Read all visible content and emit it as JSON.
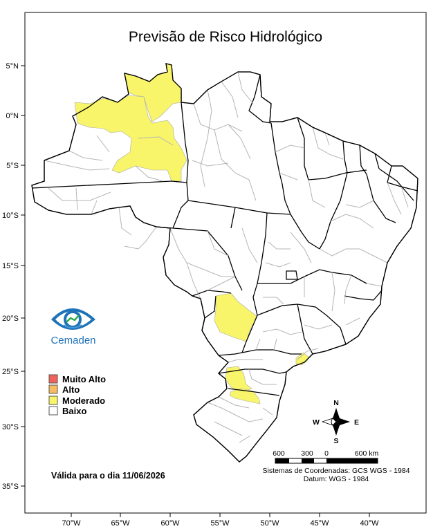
{
  "title": "Previsão de Risco Hidrológico",
  "axes": {
    "lat_ticks": [
      "5°N",
      "0°N",
      "5°S",
      "10°S",
      "15°S",
      "20°S",
      "25°S",
      "30°S",
      "35°S"
    ],
    "lon_ticks": [
      "70°W",
      "65°W",
      "60°W",
      "55°W",
      "50°W",
      "45°W",
      "40°W"
    ]
  },
  "logo": {
    "text": "Cemaden"
  },
  "legend": {
    "items": [
      {
        "label": "Muito Alto",
        "color": "#f0625a"
      },
      {
        "label": "Alto",
        "color": "#f7bb62"
      },
      {
        "label": "Moderado",
        "color": "#f8f56a"
      },
      {
        "label": "Baixo",
        "color": "#ffffff"
      }
    ]
  },
  "validity": "Válida para o dia 11/06/2026",
  "compass": {
    "n": "N",
    "s": "S",
    "e": "E",
    "w": "W"
  },
  "scale": {
    "labels": [
      "600",
      "300",
      "0",
      "600 km"
    ]
  },
  "crs": {
    "line1": "Sistemas de Coordenadas: GCS WGS - 1984",
    "line2": "Datum: WGS - 1984"
  },
  "risk_areas": [
    {
      "name": "Norte do Amazonas",
      "level": "Moderado"
    },
    {
      "name": "Norte de Roraima",
      "level": "Moderado"
    },
    {
      "name": "Mato Grosso do Sul (sul)",
      "level": "Moderado"
    },
    {
      "name": "Litoral de São Paulo",
      "level": "Moderado"
    },
    {
      "name": "Oeste de Santa Catarina",
      "level": "Moderado"
    },
    {
      "name": "Norte do Rio Grande do Sul",
      "level": "Moderado"
    }
  ]
}
